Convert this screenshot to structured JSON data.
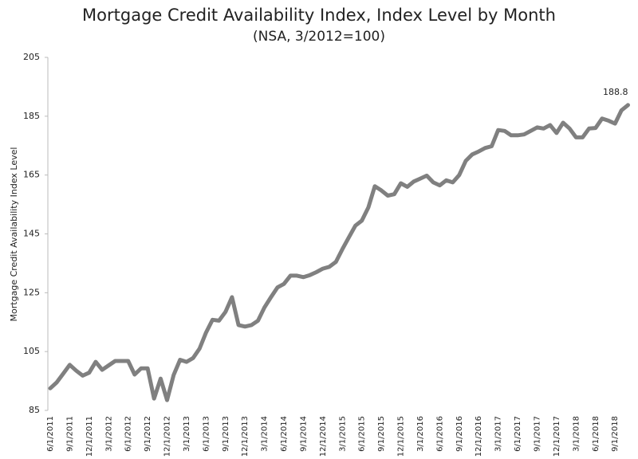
{
  "chart_data": {
    "type": "line",
    "title": "Mortgage Credit Availability Index, Index Level by Month",
    "subtitle": "(NSA, 3/2012=100)",
    "y_label": "Mortgage Credit Availability Index Level",
    "categories": [
      "6/1/2011",
      null,
      null,
      "9/1/2011",
      null,
      null,
      "12/1/2011",
      null,
      null,
      "3/1/2012",
      null,
      null,
      "6/1/2012",
      null,
      null,
      "9/1/2012",
      null,
      null,
      "12/1/2012",
      null,
      null,
      "3/1/2013",
      null,
      null,
      "6/1/2013",
      null,
      null,
      "9/1/2013",
      null,
      null,
      "12/1/2013",
      null,
      null,
      "3/1/2014",
      null,
      null,
      "6/1/2014",
      null,
      null,
      "9/1/2014",
      null,
      null,
      "12/1/2014",
      null,
      null,
      "3/1/2015",
      null,
      null,
      "6/1/2015",
      null,
      null,
      "9/1/2015",
      null,
      null,
      "12/1/2015",
      null,
      null,
      "3/1/2016",
      null,
      null,
      "6/1/2016",
      null,
      null,
      "9/1/2016",
      null,
      null,
      "12/1/2016",
      null,
      null,
      "3/1/2017",
      null,
      null,
      "6/1/2017",
      null,
      null,
      "9/1/2017",
      null,
      null,
      "12/1/2017",
      null,
      null,
      "3/1/2018",
      null,
      null,
      "6/1/2018",
      null,
      null,
      "9/1/2018",
      null,
      null
    ],
    "values": [
      92.5,
      94.5,
      97.5,
      100.5,
      98.5,
      96.8,
      97.8,
      101.5,
      98.8,
      100.3,
      101.8,
      101.8,
      101.8,
      97.2,
      99.3,
      99.3,
      89,
      95.8,
      88.5,
      97,
      102.2,
      101.5,
      102.8,
      106,
      111.5,
      115.8,
      115.5,
      118.5,
      123.5,
      114,
      113.5,
      114,
      115.5,
      120,
      123.5,
      126.8,
      128,
      130.8,
      130.8,
      130.3,
      131,
      132,
      133.2,
      133.8,
      135.5,
      139.8,
      143.8,
      147.8,
      149.5,
      154,
      161.2,
      159.8,
      158,
      158.5,
      162.2,
      161,
      162.8,
      163.8,
      164.8,
      162.5,
      161.5,
      163.2,
      162.5,
      165,
      169.8,
      172,
      173,
      174.2,
      174.8,
      180.3,
      180,
      178.5,
      178.5,
      178.8,
      180,
      181.2,
      180.8,
      182,
      179.3,
      182.8,
      180.8,
      177.8,
      177.8,
      180.8,
      181,
      184.2,
      183.5,
      182.5,
      187,
      188.8
    ],
    "color": "#808080",
    "ylim": [
      85,
      205
    ],
    "yticks": [
      85,
      105,
      125,
      145,
      165,
      185,
      205
    ],
    "grid": false
  }
}
